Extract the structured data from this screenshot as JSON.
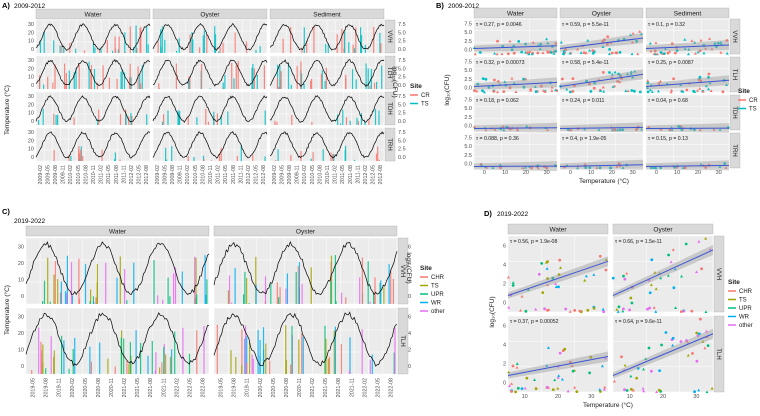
{
  "colors": {
    "panel_bg": "#ebebeb",
    "strip_bg": "#d9d9d9",
    "grid": "#ffffff",
    "temp_line": "#000000",
    "trend": "#3b55d6",
    "ci": "#9e9e9e",
    "CR": "#f8766d",
    "TS": "#00bfc4",
    "CHR": "#f8766d",
    "TS2": "#a3a500",
    "UPR": "#00bf7d",
    "WR": "#00b0f6",
    "other": "#e76bf3"
  },
  "panel_A": {
    "tag": "A)",
    "period": "2009-2012",
    "cols": [
      "Water",
      "Oyster",
      "Sediment"
    ],
    "rows": [
      "VVH",
      "TLH",
      "TDH",
      "TRH"
    ],
    "ylabel": "Temperature (°C)",
    "ylabel2": "log₁₀(CFU)",
    "y_ticks": [
      "0",
      "10",
      "20",
      "30"
    ],
    "y2_ticks": [
      "0.0",
      "2.5",
      "5.0",
      "7.5"
    ],
    "x_ticks": [
      "2009-02",
      "2009-05",
      "2009-08",
      "2009-11",
      "2010-02",
      "2010-05",
      "2010-08",
      "2010-11",
      "2011-02",
      "2011-05",
      "2011-08",
      "2011-11",
      "2012-02",
      "2012-05",
      "2012-08"
    ],
    "legend_title": "Site",
    "legend": [
      "CR",
      "TS"
    ]
  },
  "panel_B": {
    "tag": "B)",
    "period": "2009-2012",
    "cols": [
      "Water",
      "Oyster",
      "Sediment"
    ],
    "rows": [
      "VVH",
      "TLH",
      "TDH",
      "TRH"
    ],
    "ylabel": "log₁₀(CFU)",
    "xlabel": "Temperature (°C)",
    "y_ticks": [
      "0.0",
      "2.5",
      "5.0",
      "7.5"
    ],
    "x_ticks": [
      "0",
      "10",
      "20",
      "30"
    ],
    "legend_title": "Site",
    "legend": [
      "CR",
      "TS"
    ],
    "annotations": [
      [
        "τ = 0.27, p = 0.0046",
        "τ = 0.59, p = 5.5e-11",
        "τ = 0.1, p = 0.32"
      ],
      [
        "τ = 0.32, p = 0.00073",
        "τ = 0.58, p = 5.4e-11",
        "τ = 0.25, p = 0.0087"
      ],
      [
        "τ = 0.18, p = 0.062",
        "τ = 0.24, p = 0.011",
        "τ = 0.04, p = 0.68"
      ],
      [
        "τ = 0.088, p = 0.36",
        "τ = 0.4, p = 1.9e-05",
        "τ = 0.15, p = 0.13"
      ]
    ]
  },
  "panel_C": {
    "tag": "C)",
    "period": "2019-2022",
    "cols": [
      "Water",
      "Oyster"
    ],
    "rows": [
      "VVH",
      "TLH"
    ],
    "ylabel": "Temperature (°C)",
    "ylabel2": "log₁₀(CFU)",
    "y_ticks": [
      "0",
      "10",
      "20",
      "30"
    ],
    "y2_ticks": [
      "0",
      "2",
      "4",
      "6"
    ],
    "x_ticks": [
      "2019-05",
      "2019-08",
      "2019-11",
      "2020-02",
      "2020-05",
      "2020-08",
      "2020-11",
      "2021-02",
      "2021-05",
      "2021-08",
      "2021-11",
      "2022-02",
      "2022-05",
      "2022-08"
    ],
    "legend_title": "Site",
    "legend": [
      "CHR",
      "TS",
      "UPR",
      "WR",
      "other"
    ]
  },
  "panel_D": {
    "tag": "D)",
    "period": "2019-2022",
    "cols": [
      "Water",
      "Oyster"
    ],
    "rows": [
      "VVH",
      "TLH"
    ],
    "ylabel": "log₁₀(CFU)",
    "xlabel": "Temperature (°C)",
    "y_ticks": [
      "0",
      "2",
      "4",
      "6"
    ],
    "x_ticks": [
      "10",
      "20",
      "30"
    ],
    "legend_title": "Site",
    "legend": [
      "CHR",
      "TS",
      "UPR",
      "WR",
      "other"
    ],
    "annotations": [
      [
        "τ = 0.56, p = 1.9e-08",
        "τ = 0.66, p = 1.5e-11"
      ],
      [
        "τ = 0.37, p = 0.00052",
        "τ = 0.64, p = 9.6e-11"
      ]
    ]
  },
  "chart_data": [
    {
      "type": "line",
      "id": "A",
      "title": "2009-2012",
      "series": [
        {
          "name": "Temperature (°C)",
          "values": "seasonal cycle 5–30 °C"
        },
        {
          "name": "log10(CFU) bars by site",
          "sites": [
            "CR",
            "TS"
          ]
        }
      ],
      "ylim": [
        0,
        35
      ],
      "y2lim": [
        0,
        9
      ]
    },
    {
      "type": "scatter",
      "id": "B",
      "title": "2009-2012",
      "xlabel": "Temperature (°C)",
      "ylabel": "log10(CFU)",
      "xlim": [
        0,
        32
      ],
      "ylim": [
        0,
        9
      ]
    },
    {
      "type": "line",
      "id": "C",
      "title": "2019-2022",
      "ylim": [
        0,
        32
      ],
      "y2lim": [
        0,
        6
      ]
    },
    {
      "type": "scatter",
      "id": "D",
      "title": "2019-2022",
      "xlabel": "Temperature (°C)",
      "ylabel": "log10(CFU)",
      "xlim": [
        3,
        32
      ],
      "ylim": [
        0,
        6
      ]
    }
  ]
}
